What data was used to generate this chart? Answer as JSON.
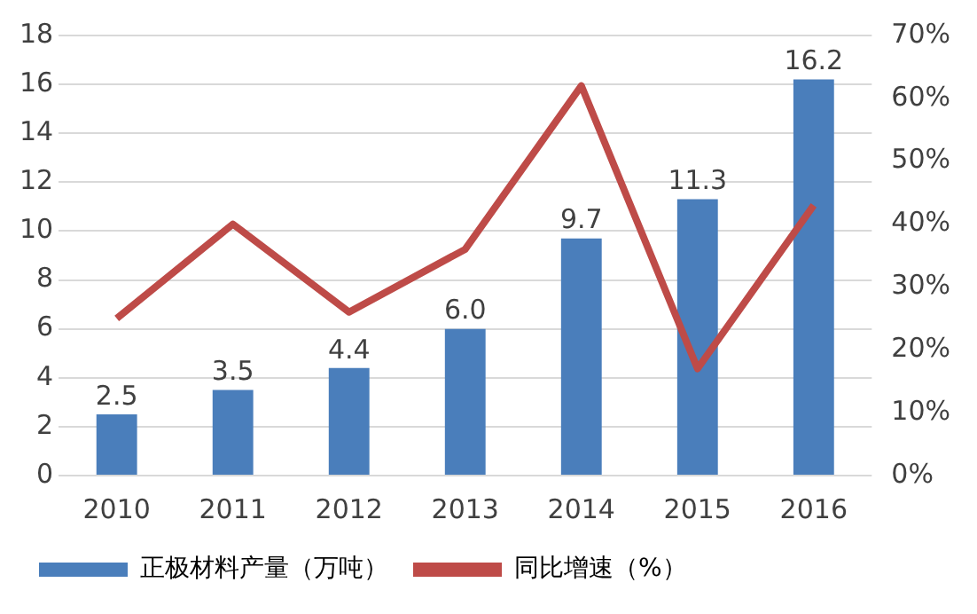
{
  "chart_data": {
    "type": "bar",
    "categories": [
      "2010",
      "2011",
      "2012",
      "2013",
      "2014",
      "2015",
      "2016"
    ],
    "series": [
      {
        "name": "正极材料产量（万吨）",
        "color": "#4a7ebb",
        "values": [
          2.5,
          3.5,
          4.4,
          6.0,
          9.7,
          11.3,
          16.2
        ],
        "value_labels": [
          "2.5",
          "3.5",
          "4.4",
          "6.0",
          "9.7",
          "11.3",
          "16.2"
        ]
      },
      {
        "name": "同比增速（%）",
        "type": "line",
        "axis": "y2",
        "color": "#be4b48",
        "values": [
          25,
          40,
          26,
          36,
          62,
          17,
          43
        ]
      }
    ],
    "ylim": [
      0,
      18
    ],
    "yticks": [
      0,
      2,
      4,
      6,
      8,
      10,
      12,
      14,
      16,
      18
    ],
    "y2lim": [
      0,
      70
    ],
    "y2ticks": [
      {
        "value": 0,
        "label": "0%"
      },
      {
        "value": 10,
        "label": "10%"
      },
      {
        "value": 20,
        "label": "20%"
      },
      {
        "value": 30,
        "label": "30%"
      },
      {
        "value": 40,
        "label": "40%"
      },
      {
        "value": 50,
        "label": "50%"
      },
      {
        "value": 60,
        "label": "60%"
      },
      {
        "value": 70,
        "label": "70%"
      }
    ],
    "grid": "y",
    "legend": "bottom",
    "marker": "none"
  }
}
